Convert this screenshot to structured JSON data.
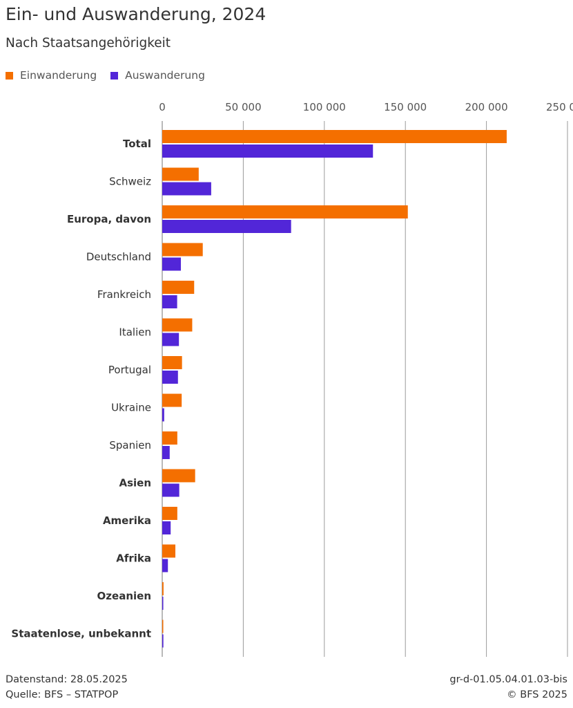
{
  "header": {
    "title": "Ein- und Auswanderung, 2024",
    "subtitle": "Nach Staatsangehörigkeit"
  },
  "legend": {
    "items": [
      {
        "label": "Einwanderung",
        "color": "#F46F00"
      },
      {
        "label": "Auswanderung",
        "color": "#5226D8"
      }
    ]
  },
  "footer": {
    "datenstand": "Datenstand: 28.05.2025",
    "quelle": "Quelle: BFS – STATPOP",
    "code": "gr-d-01.05.04.01.03-bis",
    "copyright": "© BFS 2025"
  },
  "chart_data": {
    "type": "bar",
    "orientation": "horizontal",
    "categories": [
      "Total",
      "Schweiz",
      "Europa, davon",
      "Deutschland",
      "Frankreich",
      "Italien",
      "Portugal",
      "Ukraine",
      "Spanien",
      "Asien",
      "Amerika",
      "Afrika",
      "Ozeanien",
      "Staatenlose, unbekannt"
    ],
    "bold_categories": [
      "Total",
      "Europa, davon",
      "Asien",
      "Amerika",
      "Afrika",
      "Ozeanien",
      "Staatenlose, unbekannt"
    ],
    "series": [
      {
        "name": "Einwanderung",
        "color": "#F46F00",
        "values": [
          212500,
          22500,
          151500,
          25000,
          19700,
          18500,
          12200,
          12000,
          9300,
          20300,
          9300,
          8100,
          800,
          500
        ]
      },
      {
        "name": "Auswanderung",
        "color": "#5226D8",
        "values": [
          130000,
          30200,
          79500,
          11500,
          9200,
          10300,
          9700,
          1200,
          4600,
          10500,
          5200,
          3500,
          600,
          700
        ]
      }
    ],
    "xlim": [
      0,
      250000
    ],
    "xticks": [
      0,
      50000,
      100000,
      150000,
      200000,
      250000
    ],
    "xtick_labels": [
      "0",
      "50 000",
      "100 000",
      "150 000",
      "200 000",
      "250 000"
    ],
    "grid": true,
    "legend_position": "top-left",
    "title": "Ein- und Auswanderung, 2024",
    "subtitle": "Nach Staatsangehörigkeit"
  }
}
